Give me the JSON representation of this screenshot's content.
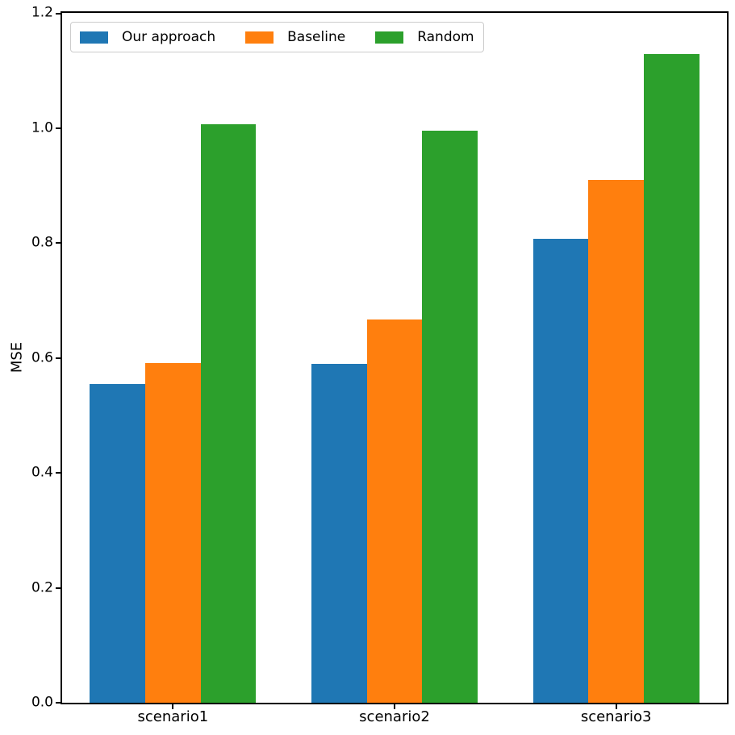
{
  "chart_data": {
    "type": "bar",
    "title": "",
    "xlabel": "",
    "ylabel": "MSE",
    "categories": [
      "scenario1",
      "scenario2",
      "scenario3"
    ],
    "series": [
      {
        "name": "Our approach",
        "color": "#1f77b4",
        "values": [
          0.555,
          0.59,
          0.807
        ]
      },
      {
        "name": "Baseline",
        "color": "#ff7f0e",
        "values": [
          0.591,
          0.666,
          0.909
        ]
      },
      {
        "name": "Random",
        "color": "#2ca02c",
        "values": [
          1.007,
          0.995,
          1.129
        ]
      }
    ],
    "ylim": [
      0,
      1.2
    ],
    "yticks": [
      "0.0",
      "0.2",
      "0.4",
      "0.6",
      "0.8",
      "1.0",
      "1.2"
    ],
    "grid": false,
    "legend_position": "upper left",
    "bar_width_fraction": 0.25,
    "background_color": "#ffffff",
    "spine_color": "#000000",
    "text_color": "#000000"
  }
}
